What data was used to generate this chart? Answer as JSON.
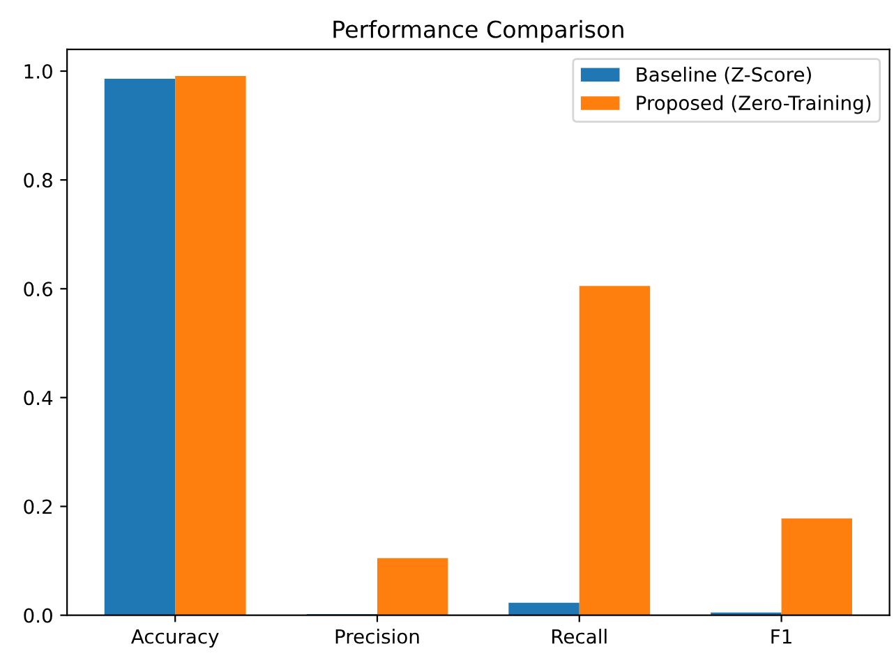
{
  "chart_data": {
    "type": "bar",
    "title": "Performance Comparison",
    "categories": [
      "Accuracy",
      "Precision",
      "Recall",
      "F1"
    ],
    "series": [
      {
        "name": "Baseline (Z-Score)",
        "color": "#1f77b4",
        "values": [
          0.986,
          0.002,
          0.023,
          0.005
        ]
      },
      {
        "name": "Proposed (Zero-Training)",
        "color": "#ff7f0e",
        "values": [
          0.991,
          0.105,
          0.605,
          0.178
        ]
      }
    ],
    "ylim": [
      0,
      1.04
    ],
    "yticks": [
      {
        "value": 0,
        "label": "0.0"
      },
      {
        "value": 0.2,
        "label": "0.2"
      },
      {
        "value": 0.4,
        "label": "0.4"
      },
      {
        "value": 0.6,
        "label": "0.6"
      },
      {
        "value": 0.8,
        "label": "0.8"
      },
      {
        "value": 1.0,
        "label": "1.0"
      }
    ],
    "legend": "top right",
    "grid": false
  }
}
